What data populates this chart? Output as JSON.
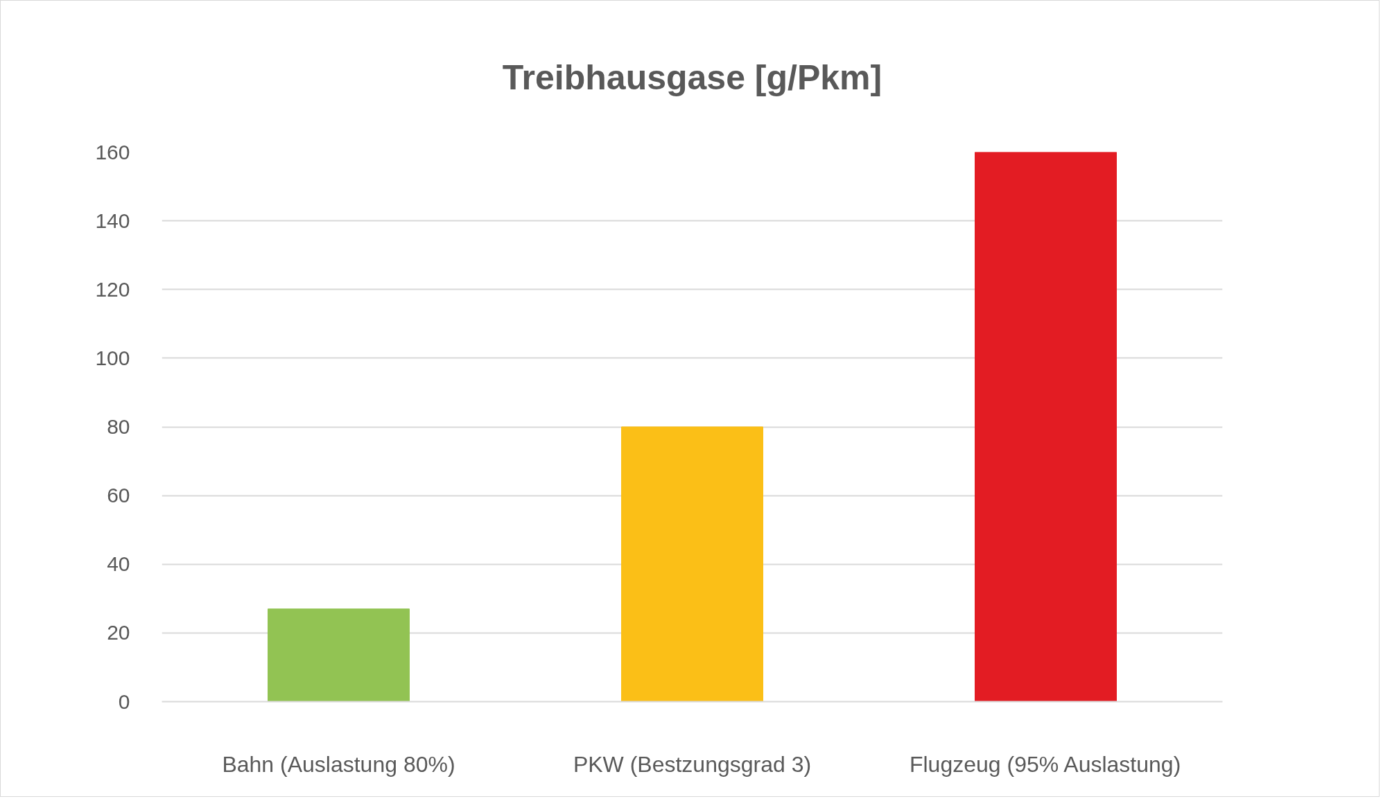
{
  "chart_data": {
    "type": "bar",
    "title": "Treibhausgase [g/Pkm]",
    "categories": [
      "Bahn (Auslastung 80%)",
      "PKW (Bestzungsgrad 3)",
      "Flugzeug (95% Auslastung)"
    ],
    "values": [
      27,
      80,
      160
    ],
    "colors": [
      "#92c353",
      "#fbbf17",
      "#e31c23"
    ],
    "ylim": [
      0,
      160
    ],
    "yticks": [
      0,
      20,
      40,
      60,
      80,
      100,
      120,
      140,
      160
    ],
    "grid": "y"
  }
}
